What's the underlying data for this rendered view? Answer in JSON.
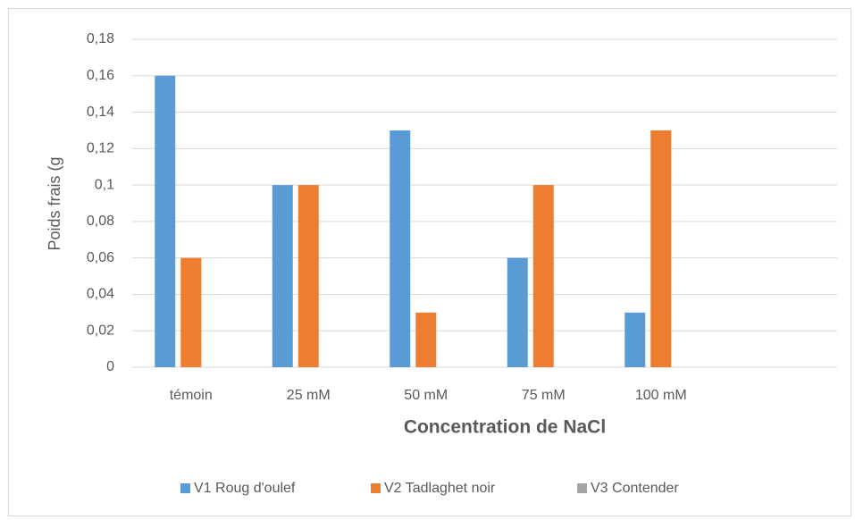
{
  "chart_data": {
    "type": "bar",
    "categories": [
      "témoin",
      "25 mM",
      "50 mM",
      "75 mM",
      "100 mM",
      null
    ],
    "series": [
      {
        "name": "V1 Roug d'oulef",
        "color": "#5b9bd5",
        "values": [
          0.16,
          0.1,
          0.13,
          0.06,
          0.03,
          null
        ]
      },
      {
        "name": "V2 Tadlaghet noir",
        "color": "#ed7d31",
        "values": [
          0.06,
          0.1,
          0.03,
          0.1,
          0.13,
          null
        ]
      },
      {
        "name": "V3 Contender",
        "color": "#a5a5a5",
        "values": [
          0,
          0,
          0,
          0,
          0,
          null
        ]
      }
    ],
    "x_label": "Concentration de NaCl",
    "y_label": "Poids frais (g",
    "ylim": [
      0,
      0.18
    ],
    "yticks": [
      0,
      {
        "value": 0.02,
        "label": "0,02"
      },
      {
        "value": 0.04,
        "label": "0,04"
      },
      {
        "value": 0.06,
        "label": "0,06"
      },
      {
        "value": 0.08,
        "label": "0,08"
      },
      {
        "value": 0.1,
        "label": "0,1"
      },
      {
        "value": 0.12,
        "label": "0,12"
      },
      {
        "value": 0.14,
        "label": "0,14"
      },
      {
        "value": 0.16,
        "label": "0,16"
      },
      {
        "value": 0.18,
        "label": "0,18"
      }
    ],
    "grid": true,
    "legend": "bottom"
  }
}
